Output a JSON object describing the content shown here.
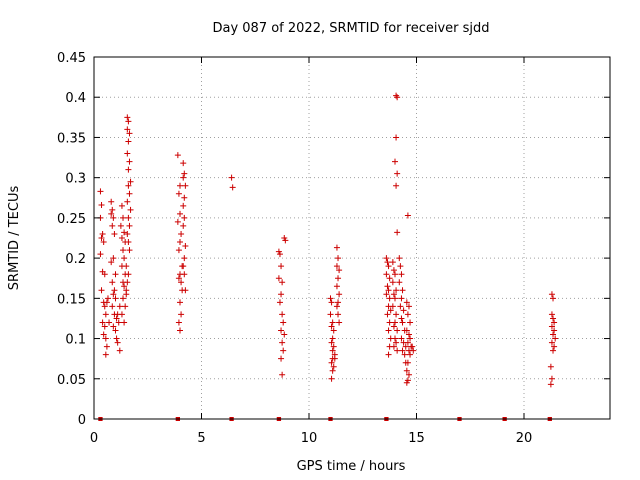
{
  "chart_data": {
    "type": "scatter",
    "title": "Day 087 of 2022, SRMTID for receiver sjdd",
    "xlabel": "GPS time / hours",
    "ylabel": "SRMTID / TECUs",
    "xlim": [
      0,
      24
    ],
    "ylim": [
      0,
      0.45
    ],
    "xticks": [
      0,
      5,
      10,
      15,
      20
    ],
    "xtick_labels": [
      "0",
      "5",
      "10",
      "15",
      "20"
    ],
    "yticks": [
      0,
      0.05,
      0.1,
      0.15,
      0.2,
      0.25,
      0.3,
      0.35,
      0.4,
      0.45
    ],
    "ytick_labels": [
      "0",
      "0.05",
      "0.1",
      "0.15",
      "0.2",
      "0.25",
      "0.3",
      "0.35",
      "0.4",
      "0.45"
    ],
    "grid": true,
    "marker": "+",
    "marker_color": "#cc0000",
    "zero_segments": [
      [
        0.2,
        0.4
      ],
      [
        3.8,
        4.0
      ],
      [
        6.3,
        6.5
      ],
      [
        8.5,
        8.7
      ],
      [
        10.9,
        11.1
      ],
      [
        13.5,
        13.7
      ],
      [
        16.9,
        17.1
      ],
      [
        19.0,
        19.2
      ],
      [
        21.1,
        21.3
      ]
    ],
    "series": [
      {
        "name": "SRMTID",
        "points": [
          [
            0.3,
            0.283
          ],
          [
            0.35,
            0.266
          ],
          [
            0.3,
            0.25
          ],
          [
            0.4,
            0.23
          ],
          [
            0.35,
            0.225
          ],
          [
            0.45,
            0.22
          ],
          [
            0.3,
            0.205
          ],
          [
            0.4,
            0.183
          ],
          [
            0.5,
            0.18
          ],
          [
            0.35,
            0.16
          ],
          [
            0.45,
            0.145
          ],
          [
            0.5,
            0.14
          ],
          [
            0.55,
            0.13
          ],
          [
            0.4,
            0.12
          ],
          [
            0.5,
            0.115
          ],
          [
            0.45,
            0.105
          ],
          [
            0.55,
            0.1
          ],
          [
            0.6,
            0.09
          ],
          [
            0.55,
            0.08
          ],
          [
            0.6,
            0.145
          ],
          [
            0.65,
            0.15
          ],
          [
            0.7,
            0.12
          ],
          [
            0.8,
            0.27
          ],
          [
            0.85,
            0.26
          ],
          [
            0.8,
            0.255
          ],
          [
            0.9,
            0.25
          ],
          [
            0.85,
            0.24
          ],
          [
            0.95,
            0.23
          ],
          [
            0.9,
            0.2
          ],
          [
            0.8,
            0.195
          ],
          [
            1.0,
            0.18
          ],
          [
            0.85,
            0.17
          ],
          [
            0.95,
            0.16
          ],
          [
            0.9,
            0.155
          ],
          [
            1.0,
            0.15
          ],
          [
            0.85,
            0.14
          ],
          [
            0.95,
            0.13
          ],
          [
            1.05,
            0.125
          ],
          [
            0.9,
            0.115
          ],
          [
            1.0,
            0.11
          ],
          [
            1.1,
            0.095
          ],
          [
            1.2,
            0.085
          ],
          [
            1.05,
            0.1
          ],
          [
            1.15,
            0.12
          ],
          [
            1.1,
            0.13
          ],
          [
            1.2,
            0.14
          ],
          [
            1.3,
            0.265
          ],
          [
            1.35,
            0.25
          ],
          [
            1.25,
            0.24
          ],
          [
            1.4,
            0.232
          ],
          [
            1.3,
            0.225
          ],
          [
            1.45,
            0.22
          ],
          [
            1.35,
            0.21
          ],
          [
            1.4,
            0.2
          ],
          [
            1.3,
            0.19
          ],
          [
            1.45,
            0.18
          ],
          [
            1.35,
            0.17
          ],
          [
            1.4,
            0.165
          ],
          [
            1.5,
            0.16
          ],
          [
            1.35,
            0.15
          ],
          [
            1.45,
            0.14
          ],
          [
            1.3,
            0.13
          ],
          [
            1.4,
            0.12
          ],
          [
            1.55,
            0.375
          ],
          [
            1.6,
            0.37
          ],
          [
            1.55,
            0.36
          ],
          [
            1.65,
            0.355
          ],
          [
            1.6,
            0.345
          ],
          [
            1.55,
            0.33
          ],
          [
            1.65,
            0.32
          ],
          [
            1.6,
            0.31
          ],
          [
            1.7,
            0.295
          ],
          [
            1.6,
            0.29
          ],
          [
            1.65,
            0.28
          ],
          [
            1.55,
            0.27
          ],
          [
            1.7,
            0.26
          ],
          [
            1.6,
            0.25
          ],
          [
            1.65,
            0.24
          ],
          [
            1.55,
            0.23
          ],
          [
            1.6,
            0.22
          ],
          [
            1.65,
            0.21
          ],
          [
            1.5,
            0.19
          ],
          [
            1.6,
            0.18
          ],
          [
            1.55,
            0.17
          ],
          [
            1.5,
            0.155
          ],
          [
            3.9,
            0.328
          ],
          [
            4.0,
            0.29
          ],
          [
            3.95,
            0.28
          ],
          [
            4.0,
            0.255
          ],
          [
            3.9,
            0.245
          ],
          [
            4.05,
            0.23
          ],
          [
            4.0,
            0.22
          ],
          [
            3.95,
            0.21
          ],
          [
            4.1,
            0.19
          ],
          [
            4.0,
            0.18
          ],
          [
            3.95,
            0.175
          ],
          [
            4.05,
            0.17
          ],
          [
            4.1,
            0.16
          ],
          [
            4.0,
            0.145
          ],
          [
            4.05,
            0.13
          ],
          [
            3.95,
            0.12
          ],
          [
            4.0,
            0.11
          ],
          [
            4.15,
            0.318
          ],
          [
            4.2,
            0.305
          ],
          [
            4.15,
            0.3
          ],
          [
            4.25,
            0.29
          ],
          [
            4.2,
            0.275
          ],
          [
            4.15,
            0.265
          ],
          [
            4.2,
            0.25
          ],
          [
            4.15,
            0.24
          ],
          [
            4.25,
            0.215
          ],
          [
            4.2,
            0.2
          ],
          [
            4.15,
            0.19
          ],
          [
            4.2,
            0.18
          ],
          [
            4.25,
            0.16
          ],
          [
            6.4,
            0.3
          ],
          [
            6.45,
            0.288
          ],
          [
            8.6,
            0.208
          ],
          [
            8.65,
            0.205
          ],
          [
            8.7,
            0.19
          ],
          [
            8.6,
            0.175
          ],
          [
            8.75,
            0.17
          ],
          [
            8.7,
            0.155
          ],
          [
            8.65,
            0.145
          ],
          [
            8.75,
            0.13
          ],
          [
            8.8,
            0.12
          ],
          [
            8.7,
            0.11
          ],
          [
            8.85,
            0.105
          ],
          [
            8.75,
            0.095
          ],
          [
            8.8,
            0.085
          ],
          [
            8.7,
            0.075
          ],
          [
            8.75,
            0.055
          ],
          [
            8.85,
            0.225
          ],
          [
            8.9,
            0.222
          ],
          [
            11.0,
            0.15
          ],
          [
            11.05,
            0.145
          ],
          [
            11.0,
            0.13
          ],
          [
            11.1,
            0.12
          ],
          [
            11.05,
            0.115
          ],
          [
            11.15,
            0.11
          ],
          [
            11.1,
            0.1
          ],
          [
            11.05,
            0.095
          ],
          [
            11.15,
            0.09
          ],
          [
            11.1,
            0.085
          ],
          [
            11.2,
            0.08
          ],
          [
            11.1,
            0.075
          ],
          [
            11.05,
            0.07
          ],
          [
            11.15,
            0.065
          ],
          [
            11.1,
            0.06
          ],
          [
            11.05,
            0.05
          ],
          [
            11.2,
            0.075
          ],
          [
            11.3,
            0.213
          ],
          [
            11.35,
            0.2
          ],
          [
            11.3,
            0.19
          ],
          [
            11.4,
            0.185
          ],
          [
            11.35,
            0.175
          ],
          [
            11.3,
            0.165
          ],
          [
            11.4,
            0.155
          ],
          [
            11.35,
            0.145
          ],
          [
            11.3,
            0.14
          ],
          [
            11.35,
            0.13
          ],
          [
            11.4,
            0.12
          ],
          [
            13.6,
            0.2
          ],
          [
            13.65,
            0.195
          ],
          [
            13.7,
            0.19
          ],
          [
            13.6,
            0.18
          ],
          [
            13.75,
            0.175
          ],
          [
            13.65,
            0.165
          ],
          [
            13.7,
            0.16
          ],
          [
            13.6,
            0.155
          ],
          [
            13.75,
            0.15
          ],
          [
            13.7,
            0.14
          ],
          [
            13.8,
            0.135
          ],
          [
            13.65,
            0.13
          ],
          [
            13.75,
            0.12
          ],
          [
            13.7,
            0.11
          ],
          [
            13.8,
            0.1
          ],
          [
            13.75,
            0.09
          ],
          [
            13.7,
            0.08
          ],
          [
            13.9,
            0.195
          ],
          [
            13.95,
            0.185
          ],
          [
            14.0,
            0.18
          ],
          [
            13.9,
            0.17
          ],
          [
            14.05,
            0.16
          ],
          [
            13.95,
            0.155
          ],
          [
            14.0,
            0.15
          ],
          [
            13.9,
            0.14
          ],
          [
            14.05,
            0.13
          ],
          [
            14.0,
            0.12
          ],
          [
            13.95,
            0.115
          ],
          [
            14.1,
            0.11
          ],
          [
            14.0,
            0.1
          ],
          [
            14.05,
            0.095
          ],
          [
            13.95,
            0.09
          ],
          [
            14.1,
            0.085
          ],
          [
            14.05,
            0.402
          ],
          [
            14.1,
            0.4
          ],
          [
            14.05,
            0.35
          ],
          [
            14.0,
            0.32
          ],
          [
            14.1,
            0.305
          ],
          [
            14.05,
            0.29
          ],
          [
            14.1,
            0.232
          ],
          [
            14.2,
            0.2
          ],
          [
            14.25,
            0.19
          ],
          [
            14.3,
            0.18
          ],
          [
            14.2,
            0.17
          ],
          [
            14.35,
            0.16
          ],
          [
            14.3,
            0.15
          ],
          [
            14.25,
            0.14
          ],
          [
            14.4,
            0.135
          ],
          [
            14.3,
            0.125
          ],
          [
            14.35,
            0.12
          ],
          [
            14.45,
            0.11
          ],
          [
            14.3,
            0.1
          ],
          [
            14.4,
            0.095
          ],
          [
            14.5,
            0.09
          ],
          [
            14.35,
            0.085
          ],
          [
            14.45,
            0.08
          ],
          [
            14.5,
            0.07
          ],
          [
            14.6,
            0.253
          ],
          [
            14.55,
            0.145
          ],
          [
            14.65,
            0.14
          ],
          [
            14.6,
            0.13
          ],
          [
            14.7,
            0.12
          ],
          [
            14.55,
            0.11
          ],
          [
            14.65,
            0.105
          ],
          [
            14.7,
            0.1
          ],
          [
            14.6,
            0.095
          ],
          [
            14.75,
            0.09
          ],
          [
            14.65,
            0.085
          ],
          [
            14.7,
            0.08
          ],
          [
            14.6,
            0.07
          ],
          [
            14.55,
            0.06
          ],
          [
            14.65,
            0.055
          ],
          [
            14.6,
            0.048
          ],
          [
            14.55,
            0.045
          ],
          [
            14.8,
            0.09
          ],
          [
            14.85,
            0.085
          ],
          [
            21.3,
            0.155
          ],
          [
            21.35,
            0.15
          ],
          [
            21.3,
            0.13
          ],
          [
            21.35,
            0.125
          ],
          [
            21.4,
            0.12
          ],
          [
            21.3,
            0.115
          ],
          [
            21.4,
            0.11
          ],
          [
            21.35,
            0.105
          ],
          [
            21.45,
            0.1
          ],
          [
            21.3,
            0.095
          ],
          [
            21.4,
            0.09
          ],
          [
            21.35,
            0.085
          ],
          [
            21.25,
            0.065
          ],
          [
            21.3,
            0.05
          ],
          [
            21.25,
            0.043
          ]
        ]
      }
    ]
  }
}
